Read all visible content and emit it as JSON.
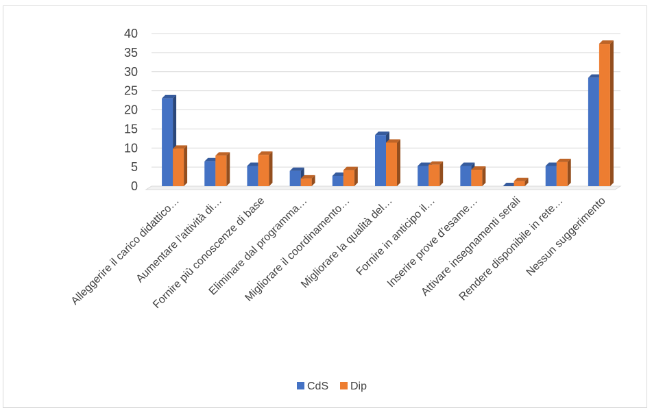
{
  "chart_data": {
    "type": "bar",
    "title": "",
    "xlabel": "",
    "ylabel": "",
    "ylim": [
      0,
      40
    ],
    "yticks": [
      "0",
      "5",
      "10",
      "15",
      "20",
      "25",
      "30",
      "35",
      "40"
    ],
    "grid": true,
    "legend_position": "bottom",
    "categories": [
      "Alleggerire il carico didattico…",
      "Aumentare l’attività di…",
      "Fornire più conoscenze di base",
      "Eliminare dal programma…",
      "Migliorare il coordinamento…",
      "Migliorare la qualità del…",
      "Fornire in anticipo il…",
      "Inserire prove d’esame…",
      "Attivare insegnamenti serali",
      "Rendere disponibile in rete…",
      "Nessun suggerimento"
    ],
    "series": [
      {
        "name": "CdS",
        "color": "#4472c4",
        "values": [
          23,
          6.5,
          5.3,
          4,
          2.7,
          13.4,
          5.3,
          5.3,
          0,
          5.3,
          28.4
        ]
      },
      {
        "name": "Dip",
        "color": "#ed7d31",
        "values": [
          9.8,
          8,
          8.2,
          2,
          4.2,
          11.4,
          5.6,
          4.3,
          1.3,
          6.3,
          37.3
        ]
      }
    ]
  }
}
